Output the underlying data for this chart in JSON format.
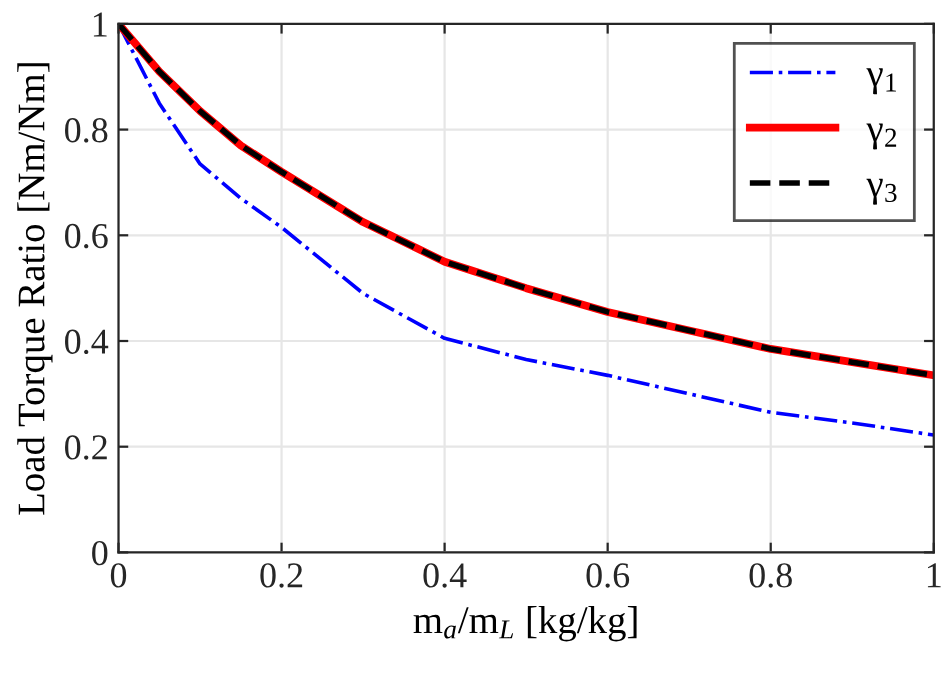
{
  "chart_data": {
    "type": "line",
    "xlabel": "m$_{a}$/m$_{L}$ [kg/kg]",
    "ylabel": "Load Torque Ratio [Nm/Nm]",
    "x": [
      0,
      0.05,
      0.1,
      0.15,
      0.2,
      0.3,
      0.4,
      0.5,
      0.6,
      0.7,
      0.8,
      0.9,
      1
    ],
    "series": [
      {
        "name": "γ$_{1}$",
        "color": "#0000ff",
        "line_style": "dashdot",
        "values": [
          1,
          0.85,
          0.735,
          0.67,
          0.615,
          0.49,
          0.405,
          0.365,
          0.335,
          0.3,
          0.265,
          0.245,
          0.222
        ]
      },
      {
        "name": "γ$_{2}$",
        "color": "#ff0000",
        "line_style": "solid",
        "values": [
          1,
          0.91,
          0.835,
          0.77,
          0.72,
          0.625,
          0.55,
          0.5,
          0.455,
          0.42,
          0.385,
          0.36,
          0.335
        ]
      },
      {
        "name": "γ$_{3}$",
        "color": "#000000",
        "line_style": "dashed",
        "values": [
          1,
          0.91,
          0.835,
          0.77,
          0.72,
          0.625,
          0.55,
          0.5,
          0.455,
          0.42,
          0.385,
          0.36,
          0.335
        ]
      }
    ],
    "xlim": [
      0,
      1
    ],
    "ylim": [
      0,
      1
    ],
    "xticks": [
      0,
      0.2,
      0.4,
      0.6,
      0.8,
      1
    ],
    "yticks": [
      0,
      0.2,
      0.4,
      0.6,
      0.8,
      1
    ],
    "grid": true,
    "legend": "top right"
  }
}
